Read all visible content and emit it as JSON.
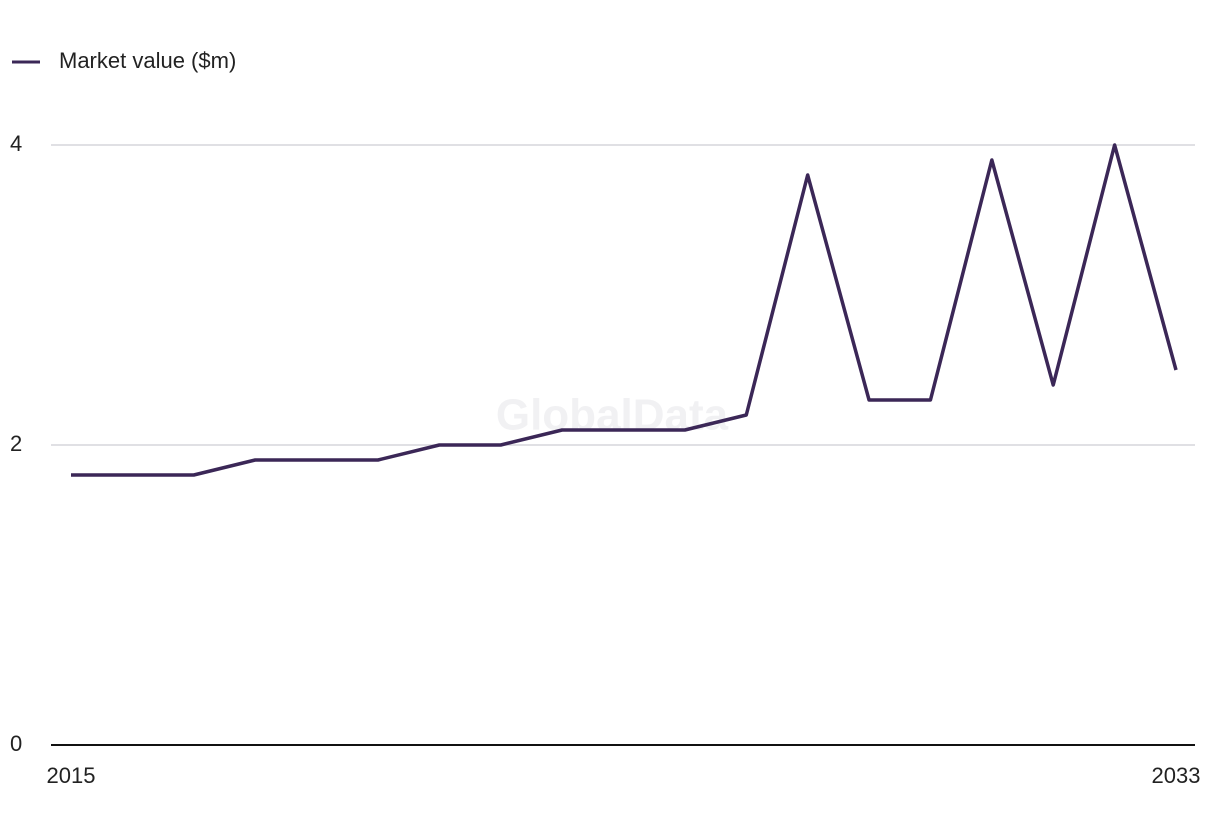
{
  "chart_data": {
    "type": "line",
    "watermark": "GlobalData",
    "x": [
      2015,
      2016,
      2017,
      2018,
      2019,
      2020,
      2021,
      2022,
      2023,
      2024,
      2025,
      2026,
      2027,
      2028,
      2029,
      2030,
      2031,
      2032,
      2033
    ],
    "series": [
      {
        "name": "Market value ($m)",
        "color": "#3b2757",
        "values": [
          1.8,
          1.8,
          1.8,
          1.9,
          1.9,
          1.9,
          2.0,
          2.0,
          2.1,
          2.1,
          2.1,
          2.2,
          3.8,
          2.3,
          2.3,
          3.9,
          2.4,
          4.0,
          2.5
        ]
      }
    ],
    "xlim": [
      2015,
      2033
    ],
    "xticks": [
      2015,
      2033
    ],
    "ylim": [
      0,
      4
    ],
    "yticks": [
      0,
      2,
      4
    ],
    "grid": true,
    "legend": "top-left"
  }
}
